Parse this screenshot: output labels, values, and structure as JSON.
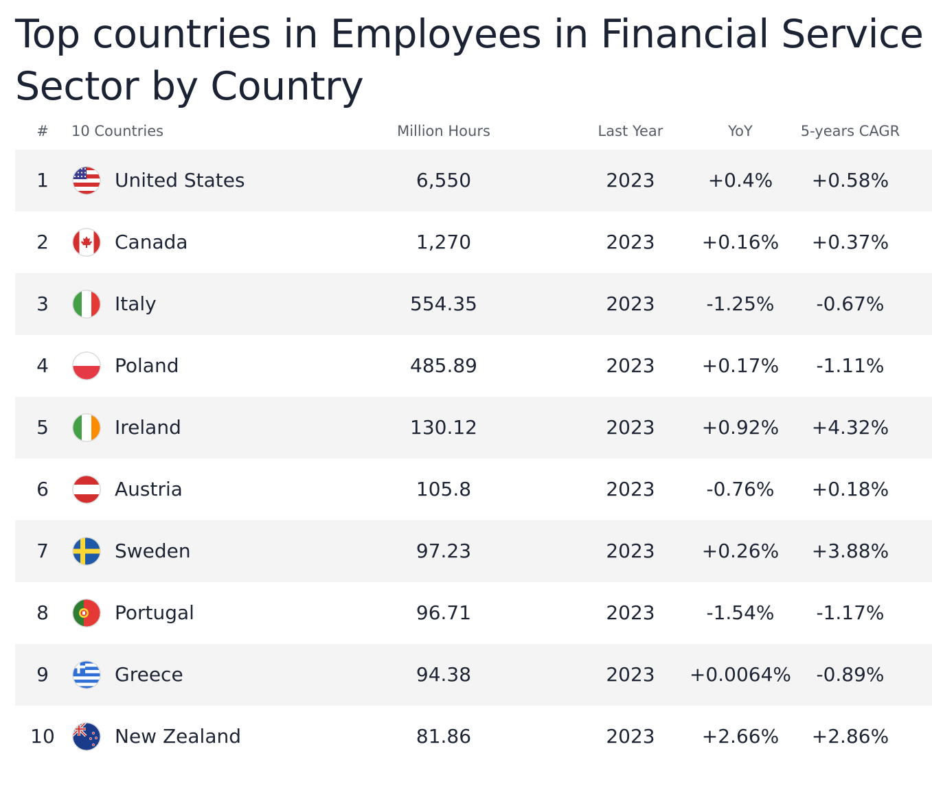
{
  "title": "Top countries in Employees in Financial Service Sector by Country",
  "columns": {
    "rank": "#",
    "country": "10 Countries",
    "value": "Million Hours",
    "year": "Last Year",
    "yoy": "YoY",
    "cagr": "5-years CAGR"
  },
  "rows": [
    {
      "rank": "1",
      "country": "United States",
      "flag": "us-flag-icon",
      "value": "6,550",
      "year": "2023",
      "yoy": "+0.4%",
      "cagr": "+0.58%"
    },
    {
      "rank": "2",
      "country": "Canada",
      "flag": "canada-flag-icon",
      "value": "1,270",
      "year": "2023",
      "yoy": "+0.16%",
      "cagr": "+0.37%"
    },
    {
      "rank": "3",
      "country": "Italy",
      "flag": "italy-flag-icon",
      "value": "554.35",
      "year": "2023",
      "yoy": "-1.25%",
      "cagr": "-0.67%"
    },
    {
      "rank": "4",
      "country": "Poland",
      "flag": "poland-flag-icon",
      "value": "485.89",
      "year": "2023",
      "yoy": "+0.17%",
      "cagr": "-1.11%"
    },
    {
      "rank": "5",
      "country": "Ireland",
      "flag": "ireland-flag-icon",
      "value": "130.12",
      "year": "2023",
      "yoy": "+0.92%",
      "cagr": "+4.32%"
    },
    {
      "rank": "6",
      "country": "Austria",
      "flag": "austria-flag-icon",
      "value": "105.8",
      "year": "2023",
      "yoy": "-0.76%",
      "cagr": "+0.18%"
    },
    {
      "rank": "7",
      "country": "Sweden",
      "flag": "sweden-flag-icon",
      "value": "97.23",
      "year": "2023",
      "yoy": "+0.26%",
      "cagr": "+3.88%"
    },
    {
      "rank": "8",
      "country": "Portugal",
      "flag": "portugal-flag-icon",
      "value": "96.71",
      "year": "2023",
      "yoy": "-1.54%",
      "cagr": "-1.17%"
    },
    {
      "rank": "9",
      "country": "Greece",
      "flag": "greece-flag-icon",
      "value": "94.38",
      "year": "2023",
      "yoy": "+0.0064%",
      "cagr": "-0.89%"
    },
    {
      "rank": "10",
      "country": "New Zealand",
      "flag": "new-zealand-flag-icon",
      "value": "81.86",
      "year": "2023",
      "yoy": "+2.66%",
      "cagr": "+2.86%"
    }
  ],
  "chart_data": {
    "type": "table",
    "title": "Top countries in Employees in Financial Service Sector by Country",
    "columns": [
      "#",
      "10 Countries",
      "Million Hours",
      "Last Year",
      "YoY",
      "5-years CAGR"
    ],
    "categories": [
      "United States",
      "Canada",
      "Italy",
      "Poland",
      "Ireland",
      "Austria",
      "Sweden",
      "Portugal",
      "Greece",
      "New Zealand"
    ],
    "series": [
      {
        "name": "Million Hours",
        "values": [
          6550,
          1270,
          554.35,
          485.89,
          130.12,
          105.8,
          97.23,
          96.71,
          94.38,
          81.86
        ]
      },
      {
        "name": "Last Year",
        "values": [
          2023,
          2023,
          2023,
          2023,
          2023,
          2023,
          2023,
          2023,
          2023,
          2023
        ]
      },
      {
        "name": "YoY (%)",
        "values": [
          0.4,
          0.16,
          -1.25,
          0.17,
          0.92,
          -0.76,
          0.26,
          -1.54,
          0.0064,
          2.66
        ]
      },
      {
        "name": "5-years CAGR (%)",
        "values": [
          0.58,
          0.37,
          -0.67,
          -1.11,
          4.32,
          0.18,
          3.88,
          -1.17,
          -0.89,
          2.86
        ]
      }
    ]
  }
}
